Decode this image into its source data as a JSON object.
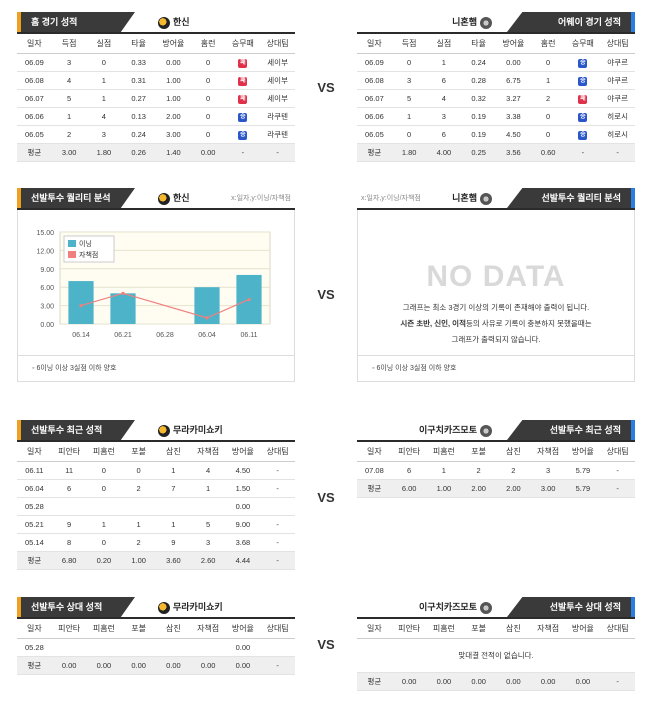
{
  "vs_label": "VS",
  "home_record": {
    "title": "홈 경기 성적",
    "team": "한신",
    "columns": [
      "일자",
      "득점",
      "실점",
      "타율",
      "방어율",
      "홈런",
      "승무패",
      "상대팀"
    ],
    "rows": [
      [
        "06.09",
        "3",
        "0",
        "0.33",
        "0.00",
        "0",
        "패",
        "세이부"
      ],
      [
        "06.08",
        "4",
        "1",
        "0.31",
        "1.00",
        "0",
        "패",
        "세이부"
      ],
      [
        "06.07",
        "5",
        "1",
        "0.27",
        "1.00",
        "0",
        "패",
        "세이부"
      ],
      [
        "06.06",
        "1",
        "4",
        "0.13",
        "2.00",
        "0",
        "승",
        "라쿠텐"
      ],
      [
        "06.05",
        "2",
        "3",
        "0.24",
        "3.00",
        "0",
        "승",
        "라쿠텐"
      ]
    ],
    "avg": [
      "평균",
      "3.00",
      "1.80",
      "0.26",
      "1.40",
      "0.00",
      "-",
      "-"
    ]
  },
  "away_record": {
    "title": "어웨이 경기 성적",
    "team": "니혼햄",
    "columns": [
      "일자",
      "득점",
      "실점",
      "타율",
      "방어율",
      "홈런",
      "승무패",
      "상대팀"
    ],
    "rows": [
      [
        "06.09",
        "0",
        "1",
        "0.24",
        "0.00",
        "0",
        "승",
        "야쿠르"
      ],
      [
        "06.08",
        "3",
        "6",
        "0.28",
        "6.75",
        "1",
        "승",
        "야쿠르"
      ],
      [
        "06.07",
        "5",
        "4",
        "0.32",
        "3.27",
        "2",
        "패",
        "야쿠르"
      ],
      [
        "06.06",
        "1",
        "3",
        "0.19",
        "3.38",
        "0",
        "승",
        "히로시"
      ],
      [
        "06.05",
        "0",
        "6",
        "0.19",
        "4.50",
        "0",
        "승",
        "히로시"
      ]
    ],
    "avg": [
      "평균",
      "1.80",
      "4.00",
      "0.25",
      "3.56",
      "0.60",
      "-",
      "-"
    ]
  },
  "quality_left": {
    "title": "선발투수 퀄리티 분석",
    "team": "한신",
    "note": "x:일자,y:이닝/자책점",
    "footnote": "6이닝 이상 3실점 이하 양호",
    "chart_data": {
      "type": "bar",
      "categories": [
        "06.14",
        "06.21",
        "06.28",
        "06.04",
        "06.11"
      ],
      "series": [
        {
          "name": "이닝",
          "type": "bar",
          "color": "#4db3c8",
          "values": [
            7,
            5,
            null,
            6,
            8
          ]
        },
        {
          "name": "자책점",
          "type": "line",
          "color": "#f08080",
          "values": [
            3,
            5,
            null,
            1,
            4
          ]
        }
      ],
      "ylim": [
        0,
        15
      ],
      "yticks": [
        "15.00",
        "12.00",
        "9.00",
        "6.00",
        "3.00",
        "0.00"
      ],
      "legend": "top-left"
    }
  },
  "quality_right": {
    "title": "선발투수 퀄리티 분석",
    "team": "니혼햄",
    "note": "x:일자,y:이닝/자책점",
    "nodata": "NO DATA",
    "msg1": "그래프는 최소 3경기 이상의 기록이 존재해야 출력이 됩니다.",
    "msg2_bold": "시즌 초반, 신인, 이적",
    "msg2_rest": "등의 사유로 기록이 충분하지 못했을때는",
    "msg3": "그래프가 출력되지 않습니다.",
    "footnote": "6이닝 이상 3실점 이하 양호"
  },
  "recent_left": {
    "title": "선발투수 최근 성적",
    "pitcher": "무라카미쇼키",
    "columns": [
      "일자",
      "피안타",
      "피홈런",
      "포볼",
      "삼진",
      "자책점",
      "방어율",
      "상대팀"
    ],
    "rows": [
      [
        "06.11",
        "11",
        "0",
        "0",
        "1",
        "4",
        "4.50",
        "-"
      ],
      [
        "06.04",
        "6",
        "0",
        "2",
        "7",
        "1",
        "1.50",
        "-"
      ],
      [
        "05.28",
        "",
        "",
        "",
        "",
        "",
        "0.00",
        ""
      ],
      [
        "05.21",
        "9",
        "1",
        "1",
        "1",
        "5",
        "9.00",
        "-"
      ],
      [
        "05.14",
        "8",
        "0",
        "2",
        "9",
        "3",
        "3.68",
        "-"
      ]
    ],
    "avg": [
      "평균",
      "6.80",
      "0.20",
      "1.00",
      "3.60",
      "2.60",
      "4.44",
      "-"
    ]
  },
  "recent_right": {
    "title": "선발투수 최근 성적",
    "pitcher": "이구치카즈모토",
    "columns": [
      "일자",
      "피안타",
      "피홈런",
      "포볼",
      "삼진",
      "자책점",
      "방어율",
      "상대팀"
    ],
    "rows": [
      [
        "07.08",
        "6",
        "1",
        "2",
        "2",
        "3",
        "5.79",
        "-"
      ]
    ],
    "avg": [
      "평균",
      "6.00",
      "1.00",
      "2.00",
      "2.00",
      "3.00",
      "5.79",
      "-"
    ]
  },
  "opp_left": {
    "title": "선발투수 상대 성적",
    "pitcher": "무라카미쇼키",
    "columns": [
      "일자",
      "피안타",
      "피홈런",
      "포볼",
      "삼진",
      "자책점",
      "방어율",
      "상대팀"
    ],
    "rows": [
      [
        "05.28",
        "",
        "",
        "",
        "",
        "",
        "0.00",
        ""
      ]
    ],
    "avg": [
      "평균",
      "0.00",
      "0.00",
      "0.00",
      "0.00",
      "0.00",
      "0.00",
      "-"
    ]
  },
  "opp_right": {
    "title": "선발투수 상대 성적",
    "pitcher": "이구치카즈모토",
    "columns": [
      "일자",
      "피안타",
      "피홈런",
      "포볼",
      "삼진",
      "자책점",
      "방어율",
      "상대팀"
    ],
    "empty_msg": "맞대결 전적이 없습니다.",
    "avg": [
      "평균",
      "0.00",
      "0.00",
      "0.00",
      "0.00",
      "0.00",
      "0.00",
      "-"
    ]
  }
}
